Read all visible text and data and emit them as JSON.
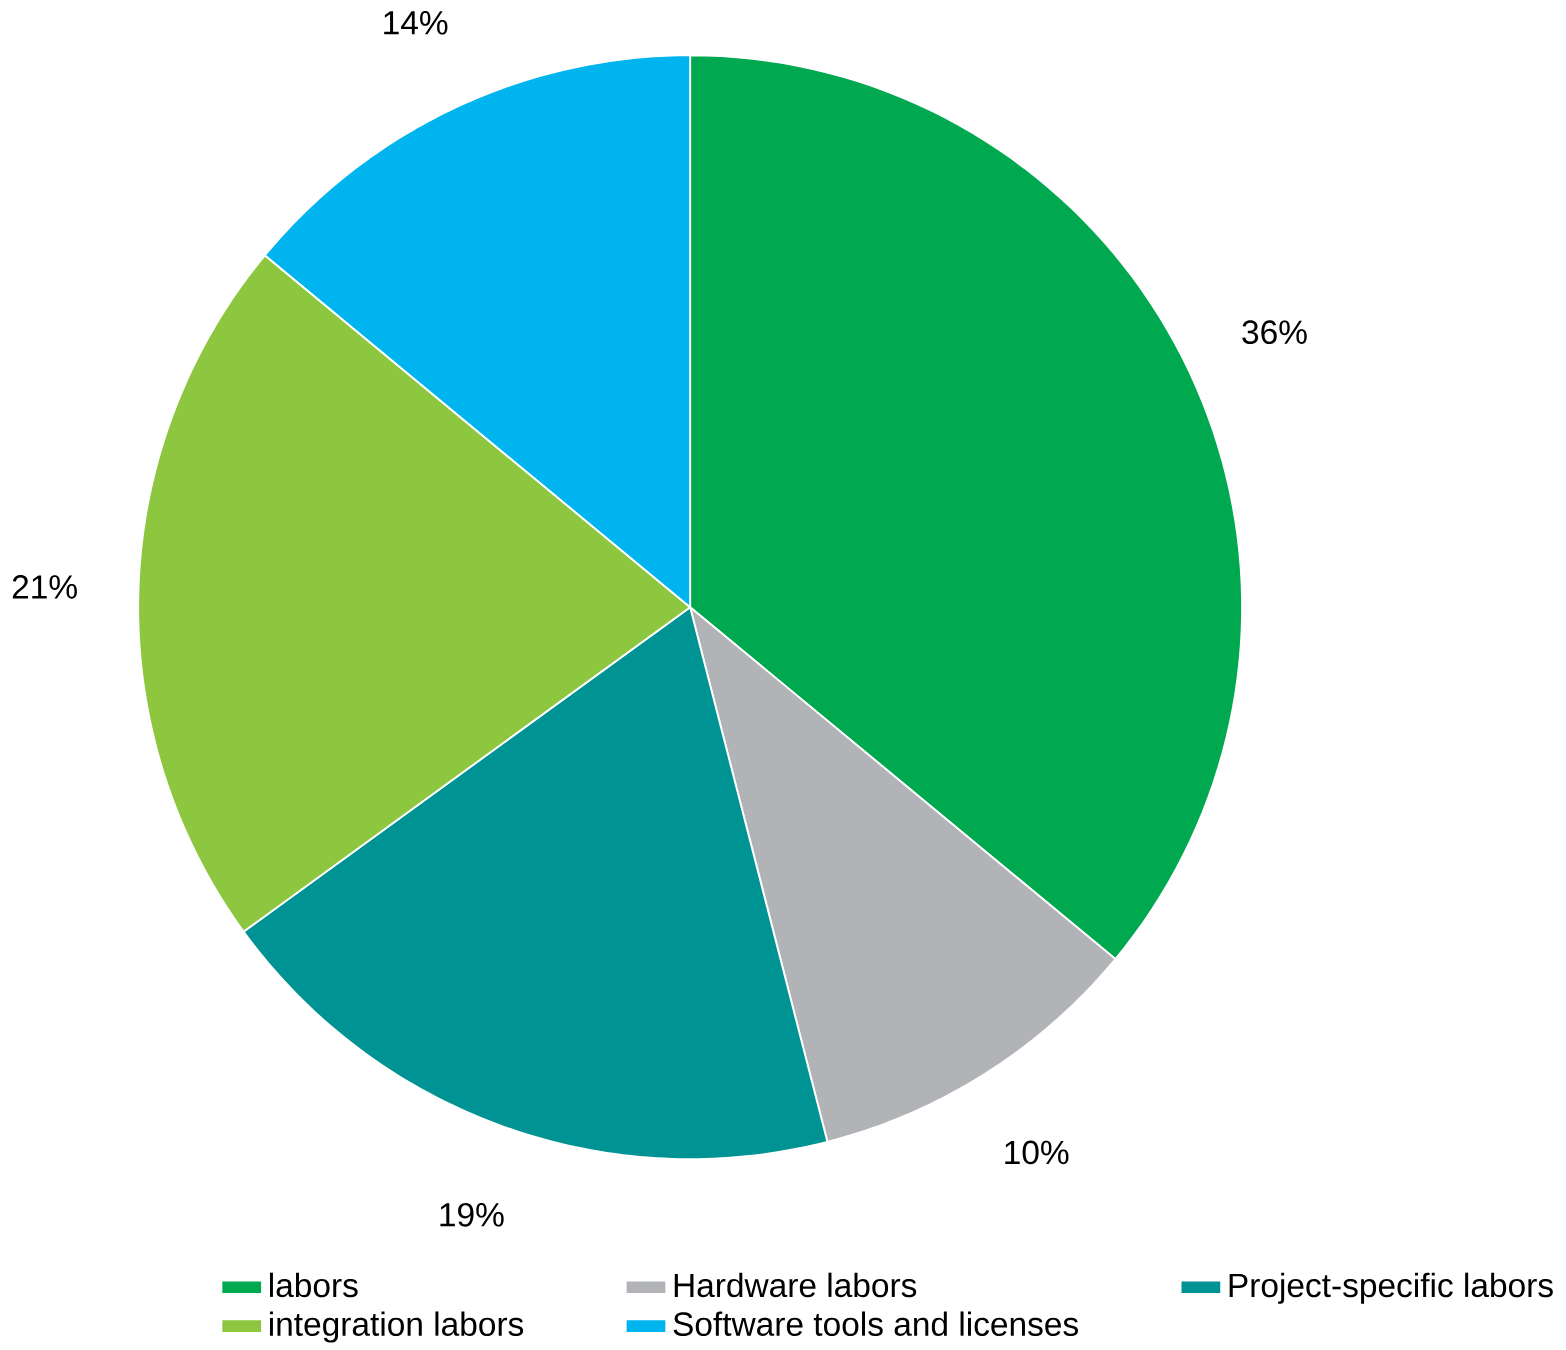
{
  "chart_data": {
    "type": "pie",
    "categories": [
      "labors",
      "Hardware labors",
      "Project-specific labors",
      "integration labors",
      "Software tools and licenses"
    ],
    "values": [
      36,
      10,
      19,
      21,
      14
    ],
    "colors": [
      "#00a84f",
      "#b1b3b6",
      "#009393",
      "#8dc63f",
      "#00b5ef"
    ],
    "value_labels": [
      "36%",
      "10%",
      "19%",
      "21%",
      "14%"
    ],
    "legend": "bottom"
  }
}
